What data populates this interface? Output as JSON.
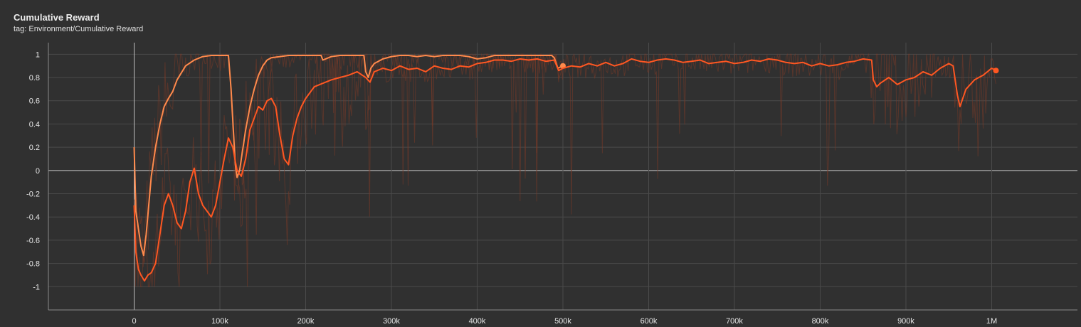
{
  "card": {
    "title": "Cumulative Reward",
    "subtitle": "tag: Environment/Cumulative Reward"
  },
  "chart_data": {
    "type": "line",
    "title": "Cumulative Reward",
    "xlabel": "",
    "ylabel": "",
    "xlim": [
      -100000,
      1100000
    ],
    "ylim": [
      -1.2,
      1.1
    ],
    "x_ticks": [
      0,
      100000,
      200000,
      300000,
      400000,
      500000,
      600000,
      700000,
      800000,
      900000,
      1000000
    ],
    "x_tick_labels": [
      "0",
      "100k",
      "200k",
      "300k",
      "400k",
      "500k",
      "600k",
      "700k",
      "800k",
      "900k",
      "1M"
    ],
    "y_ticks": [
      -1,
      -0.8,
      -0.6,
      -0.4,
      -0.2,
      0,
      0.2,
      0.4,
      0.6,
      0.8,
      1
    ],
    "y_tick_labels": [
      "-1",
      "-0.8",
      "-0.6",
      "-0.4",
      "-0.2",
      "0",
      "0.2",
      "0.4",
      "0.6",
      "0.8",
      "1"
    ],
    "grid": true,
    "legend": "none",
    "colors": {
      "run_a": "#ff8a4c",
      "run_b": "#ff5722",
      "raw": "#7a3a28",
      "grid": "#4a4a4a",
      "zero_line": "#c8c8c8"
    },
    "series": [
      {
        "color": "#ff8a4c",
        "x": [
          0,
          2000,
          5000,
          8000,
          11000,
          14000,
          17000,
          20000,
          25000,
          30000,
          35000,
          40000,
          45000,
          50000,
          60000,
          70000,
          80000,
          90000,
          100000,
          105000,
          110000,
          113000,
          116000,
          118000,
          120000,
          123000,
          126000,
          130000,
          135000,
          140000,
          145000,
          150000,
          155000,
          160000,
          170000,
          180000,
          190000,
          200000,
          210000,
          218000,
          220000,
          230000,
          240000,
          250000,
          260000,
          268000,
          270000,
          273000,
          276000,
          280000,
          290000,
          300000,
          310000,
          320000,
          330000,
          340000,
          350000,
          360000,
          370000,
          380000,
          390000,
          400000,
          410000,
          420000,
          430000,
          440000,
          450000,
          460000,
          470000,
          480000,
          487000,
          490000,
          494000,
          500000
        ],
        "y": [
          0.2,
          -0.35,
          -0.5,
          -0.65,
          -0.73,
          -0.55,
          -0.3,
          -0.05,
          0.2,
          0.4,
          0.55,
          0.62,
          0.68,
          0.78,
          0.9,
          0.95,
          0.98,
          0.99,
          0.99,
          0.99,
          0.99,
          0.7,
          0.3,
          0.05,
          -0.06,
          0.0,
          0.15,
          0.35,
          0.55,
          0.7,
          0.82,
          0.9,
          0.95,
          0.97,
          0.98,
          0.99,
          0.99,
          0.99,
          0.99,
          0.99,
          0.95,
          0.98,
          0.99,
          0.99,
          0.99,
          0.99,
          0.85,
          0.8,
          0.88,
          0.92,
          0.96,
          0.98,
          0.99,
          0.99,
          0.98,
          0.99,
          0.98,
          0.99,
          0.99,
          0.99,
          0.98,
          0.96,
          0.97,
          0.99,
          0.99,
          0.99,
          0.99,
          0.99,
          0.99,
          0.99,
          0.99,
          0.97,
          0.88,
          0.9
        ]
      },
      {
        "color": "#ff5722",
        "x": [
          0,
          2000,
          5000,
          8000,
          12000,
          16000,
          20000,
          25000,
          30000,
          35000,
          40000,
          45000,
          50000,
          55000,
          60000,
          65000,
          70000,
          75000,
          80000,
          85000,
          90000,
          95000,
          100000,
          105000,
          110000,
          115000,
          120000,
          125000,
          130000,
          135000,
          140000,
          145000,
          150000,
          155000,
          160000,
          165000,
          170000,
          175000,
          180000,
          185000,
          190000,
          195000,
          200000,
          210000,
          220000,
          230000,
          240000,
          250000,
          260000,
          270000,
          275000,
          280000,
          290000,
          300000,
          310000,
          320000,
          330000,
          340000,
          350000,
          360000,
          370000,
          380000,
          390000,
          400000,
          410000,
          420000,
          430000,
          440000,
          450000,
          460000,
          470000,
          480000,
          490000,
          495000,
          500000,
          510000,
          520000,
          530000,
          540000,
          550000,
          560000,
          570000,
          580000,
          590000,
          600000,
          610000,
          620000,
          630000,
          640000,
          650000,
          660000,
          670000,
          680000,
          690000,
          700000,
          710000,
          720000,
          730000,
          740000,
          750000,
          760000,
          770000,
          780000,
          790000,
          800000,
          810000,
          820000,
          830000,
          840000,
          850000,
          860000,
          862000,
          866000,
          870000,
          880000,
          890000,
          900000,
          910000,
          920000,
          930000,
          940000,
          950000,
          955000,
          960000,
          963000,
          970000,
          980000,
          990000,
          1000000,
          1005000
        ],
        "y": [
          -0.3,
          -0.7,
          -0.85,
          -0.9,
          -0.95,
          -0.9,
          -0.88,
          -0.8,
          -0.55,
          -0.3,
          -0.2,
          -0.3,
          -0.45,
          -0.5,
          -0.35,
          -0.1,
          0.02,
          -0.2,
          -0.3,
          -0.35,
          -0.4,
          -0.3,
          -0.1,
          0.1,
          0.28,
          0.2,
          0.0,
          -0.05,
          0.1,
          0.35,
          0.45,
          0.55,
          0.52,
          0.6,
          0.62,
          0.55,
          0.3,
          0.1,
          0.05,
          0.3,
          0.45,
          0.55,
          0.62,
          0.72,
          0.75,
          0.78,
          0.8,
          0.82,
          0.85,
          0.8,
          0.76,
          0.85,
          0.88,
          0.86,
          0.9,
          0.87,
          0.88,
          0.85,
          0.9,
          0.88,
          0.87,
          0.9,
          0.89,
          0.92,
          0.93,
          0.95,
          0.95,
          0.94,
          0.96,
          0.95,
          0.96,
          0.94,
          0.95,
          0.86,
          0.88,
          0.9,
          0.89,
          0.92,
          0.9,
          0.93,
          0.9,
          0.92,
          0.96,
          0.94,
          0.93,
          0.95,
          0.96,
          0.95,
          0.93,
          0.94,
          0.95,
          0.92,
          0.93,
          0.94,
          0.92,
          0.93,
          0.95,
          0.94,
          0.96,
          0.95,
          0.93,
          0.92,
          0.93,
          0.9,
          0.92,
          0.9,
          0.91,
          0.93,
          0.94,
          0.96,
          0.95,
          0.78,
          0.72,
          0.75,
          0.8,
          0.74,
          0.78,
          0.8,
          0.85,
          0.82,
          0.88,
          0.92,
          0.9,
          0.65,
          0.55,
          0.7,
          0.78,
          0.82,
          0.88,
          0.86
        ]
      }
    ]
  }
}
